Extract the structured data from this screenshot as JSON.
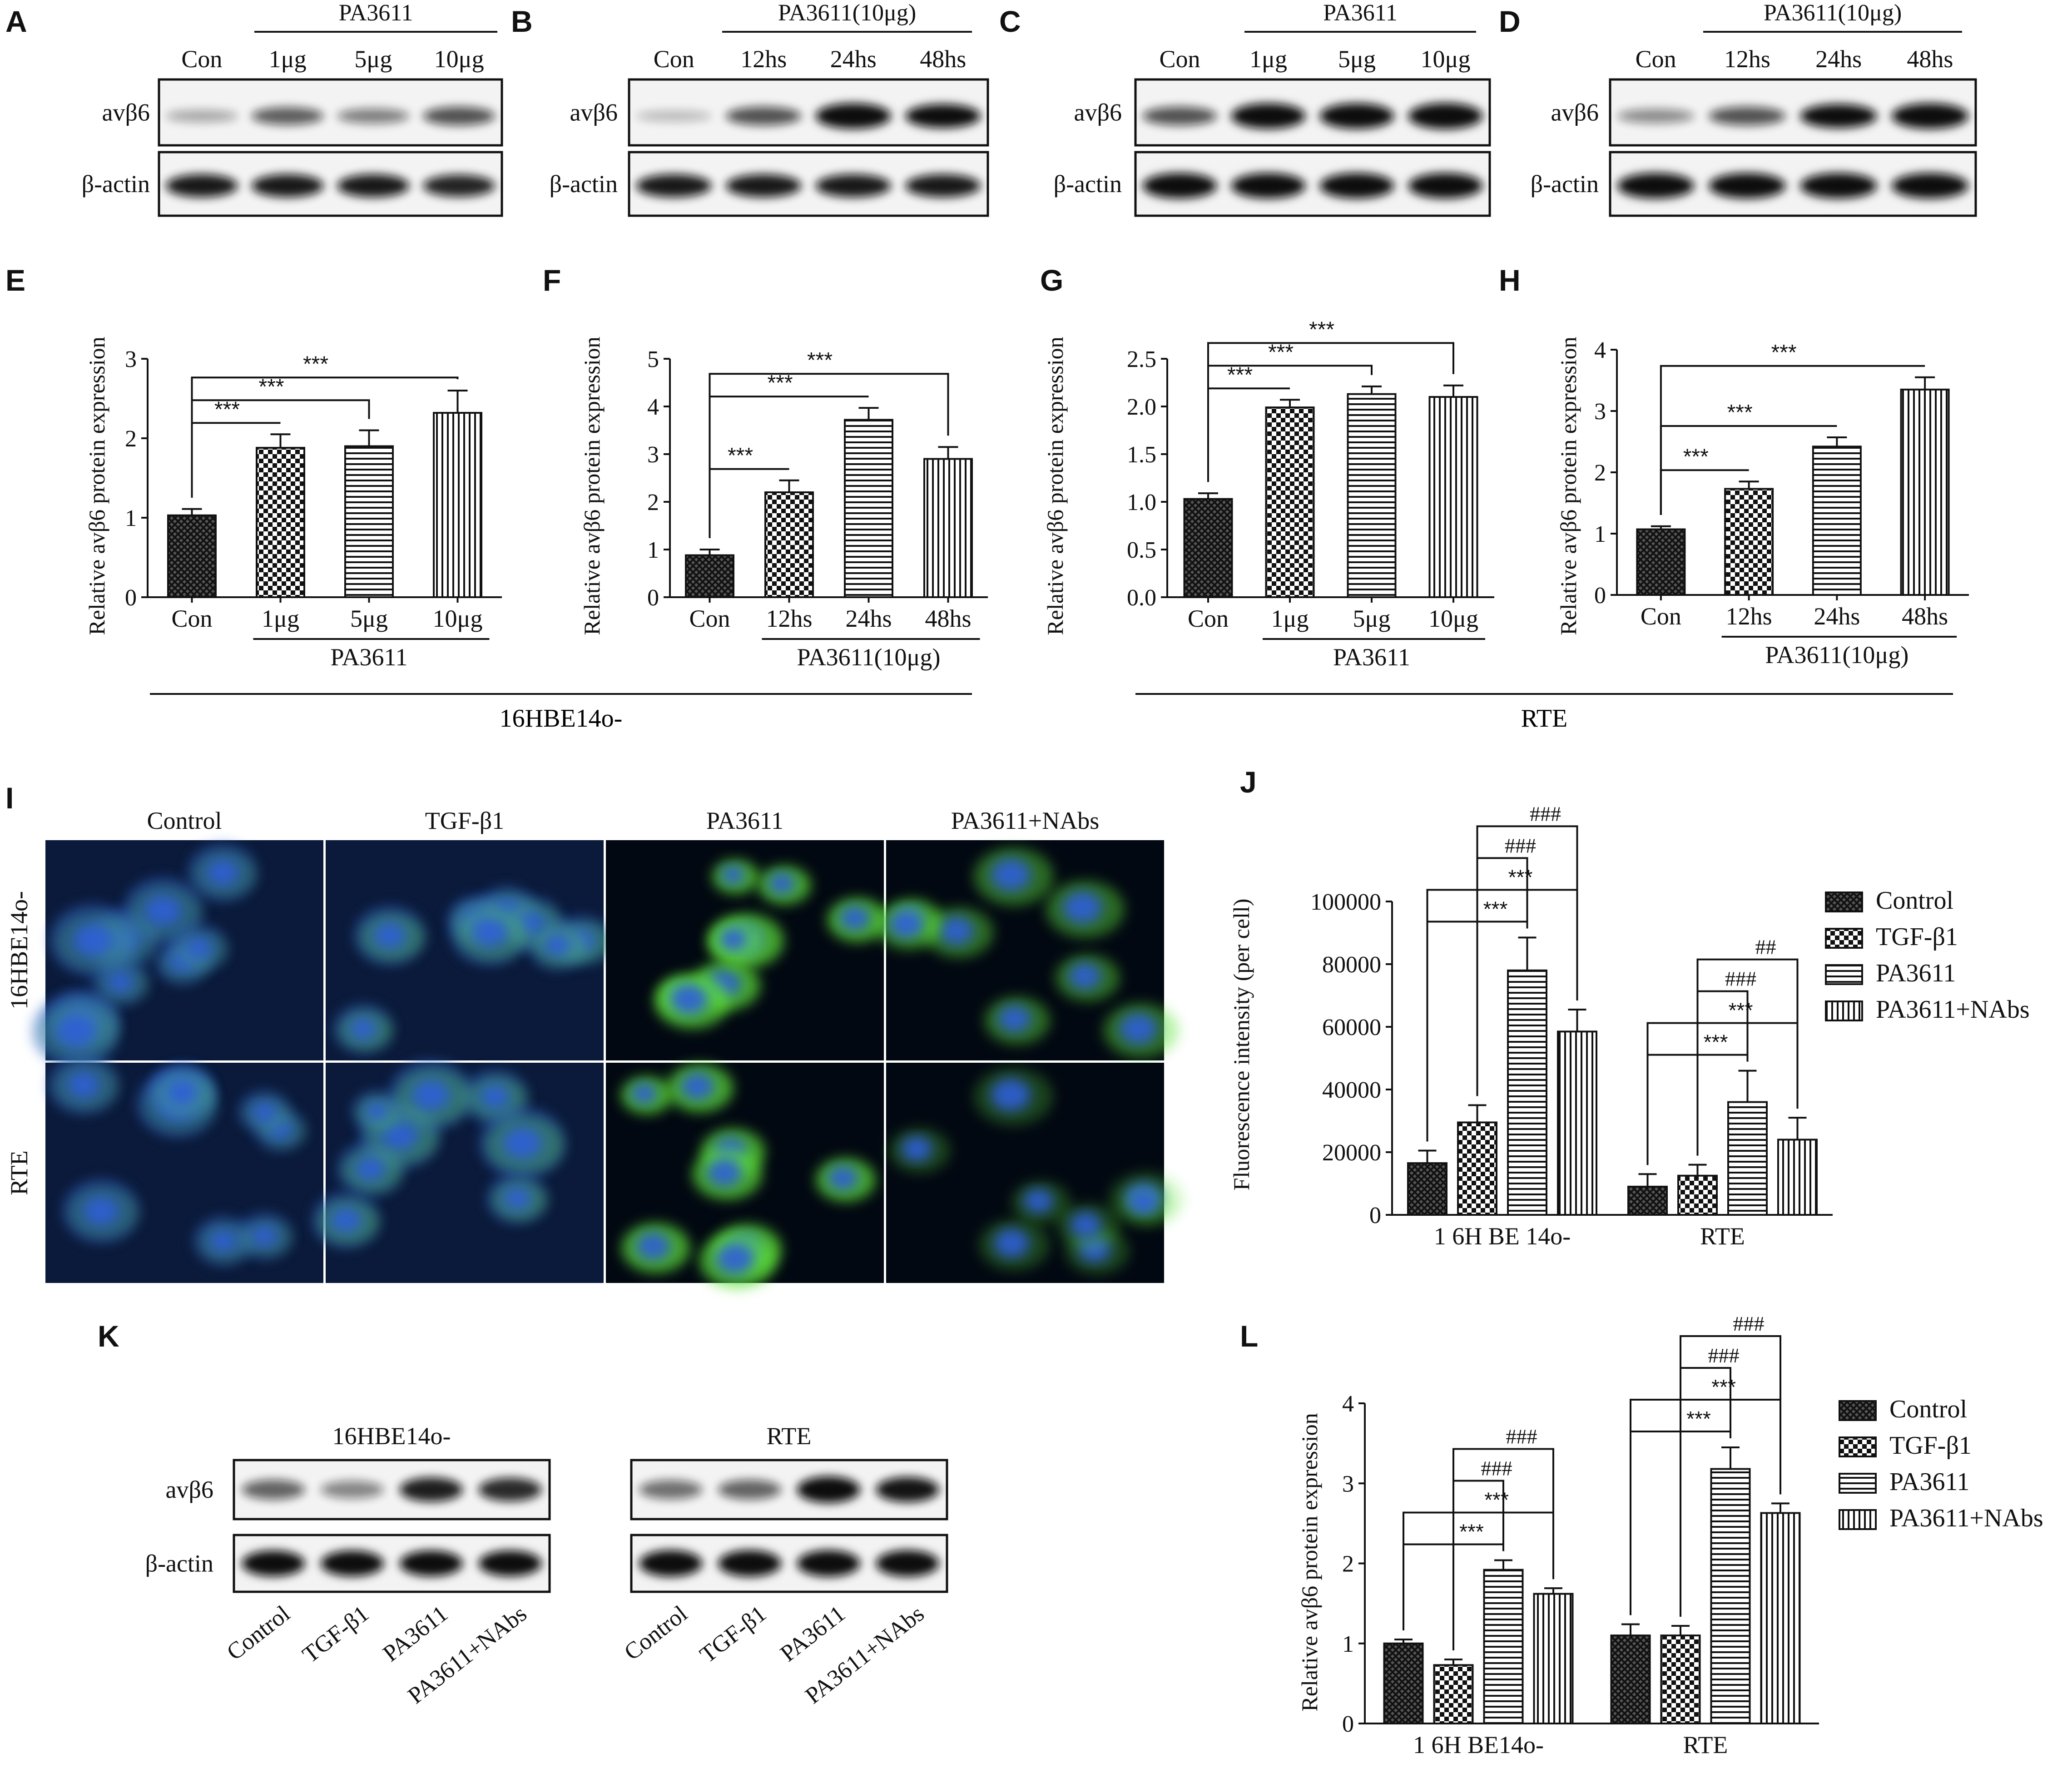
{
  "colors": {
    "ink": "#111111",
    "blot_bg": "#f2f2f2",
    "band": "#1a1a1a",
    "nucleus": "#2f62c8",
    "stain": "#5fe23a"
  },
  "panel_letters": [
    "A",
    "B",
    "C",
    "D",
    "E",
    "F",
    "G",
    "H",
    "I",
    "J",
    "K",
    "L"
  ],
  "blots": [
    {
      "letter": "A",
      "header": "PA3611",
      "lanes": [
        "Con",
        "1μg",
        "5μg",
        "10μg"
      ],
      "rows": [
        "avβ6",
        "β-actin"
      ],
      "intensity": [
        [
          0.18,
          0.5,
          0.35,
          0.55
        ],
        [
          0.8,
          0.8,
          0.8,
          0.75
        ]
      ]
    },
    {
      "letter": "B",
      "header": "PA3611(10μg)",
      "lanes": [
        "Con",
        "12hs",
        "24hs",
        "48hs"
      ],
      "rows": [
        "avβ6",
        "β-actin"
      ],
      "intensity": [
        [
          0.1,
          0.55,
          0.95,
          0.85
        ],
        [
          0.8,
          0.8,
          0.8,
          0.8
        ]
      ]
    },
    {
      "letter": "C",
      "header": "PA3611",
      "lanes": [
        "Con",
        "1μg",
        "5μg",
        "10μg"
      ],
      "rows": [
        "avβ6",
        "β-actin"
      ],
      "intensity": [
        [
          0.55,
          0.95,
          0.95,
          0.98
        ],
        [
          0.95,
          0.95,
          0.95,
          0.95
        ]
      ]
    },
    {
      "letter": "D",
      "header": "PA3611(10μg)",
      "lanes": [
        "Con",
        "12hs",
        "24hs",
        "48hs"
      ],
      "rows": [
        "avβ6",
        "β-actin"
      ],
      "intensity": [
        [
          0.3,
          0.55,
          0.85,
          0.95
        ],
        [
          0.95,
          0.95,
          0.95,
          0.95
        ]
      ]
    }
  ],
  "group_labels": [
    "16HBE14o-",
    "RTE"
  ],
  "micrograph": {
    "letter": "I",
    "columns": [
      "Control",
      "TGF-β1",
      "PA3611",
      "PA3611+NAbs"
    ],
    "rows": [
      "16HBE14o-",
      "RTE"
    ]
  },
  "blot_k": {
    "letter": "K",
    "blots": [
      {
        "title": "16HBE14o-",
        "rows": [
          "avβ6",
          "β-actin"
        ],
        "intensity": [
          [
            0.5,
            0.35,
            0.8,
            0.75
          ],
          [
            0.9,
            0.9,
            0.9,
            0.9
          ]
        ]
      },
      {
        "title": "RTE",
        "rows": [],
        "intensity": [
          [
            0.45,
            0.5,
            0.95,
            0.85
          ],
          [
            0.95,
            0.95,
            0.95,
            0.95
          ]
        ]
      }
    ],
    "lanes": [
      "Control",
      "TGF-β1",
      "PA3611",
      "PA3611+NAbs"
    ]
  },
  "chart_data": [
    {
      "letter": "E",
      "type": "bar",
      "ylabel": "Relative avβ6 protein expression",
      "categories": [
        "Con",
        "1μg",
        "5μg",
        "10μg"
      ],
      "values": [
        1.03,
        1.88,
        1.9,
        2.32
      ],
      "errors": [
        0.08,
        0.17,
        0.2,
        0.28
      ],
      "ylim": [
        0,
        3
      ],
      "yticks": [
        0,
        1,
        2,
        3
      ],
      "group_label": "PA3611",
      "sig": [
        "***",
        "***",
        "***"
      ],
      "patterns": [
        "pat-cross",
        "pat-check",
        "pat-hline",
        "pat-vline"
      ]
    },
    {
      "letter": "F",
      "type": "bar",
      "ylabel": "Relative avβ6 protein expression",
      "categories": [
        "Con",
        "12hs",
        "24hs",
        "48hs"
      ],
      "values": [
        0.88,
        2.2,
        3.72,
        2.9
      ],
      "errors": [
        0.12,
        0.25,
        0.25,
        0.25
      ],
      "ylim": [
        0,
        5
      ],
      "yticks": [
        0,
        1,
        2,
        3,
        4,
        5
      ],
      "group_label": "PA3611(10μg)",
      "sig": [
        "***",
        "***",
        "***"
      ],
      "patterns": [
        "pat-cross",
        "pat-check",
        "pat-hline",
        "pat-vline"
      ]
    },
    {
      "letter": "G",
      "type": "bar",
      "ylabel": "Relative avβ6 protein expression",
      "categories": [
        "Con",
        "1μg",
        "5μg",
        "10μg"
      ],
      "values": [
        1.03,
        1.99,
        2.13,
        2.1
      ],
      "errors": [
        0.06,
        0.08,
        0.08,
        0.12
      ],
      "ylim": [
        0,
        2.5
      ],
      "yticks": [
        "0.0",
        "0.5",
        "1.0",
        "1.5",
        "2.0",
        "2.5"
      ],
      "group_label": "PA3611",
      "sig": [
        "***",
        "***",
        "***"
      ],
      "patterns": [
        "pat-cross",
        "pat-check",
        "pat-hline",
        "pat-vline"
      ]
    },
    {
      "letter": "H",
      "type": "bar",
      "ylabel": "Relative avβ6 protein expression",
      "categories": [
        "Con",
        "12hs",
        "24hs",
        "48hs"
      ],
      "values": [
        1.07,
        1.73,
        2.42,
        3.35
      ],
      "errors": [
        0.05,
        0.12,
        0.15,
        0.2
      ],
      "ylim": [
        0,
        4
      ],
      "yticks": [
        0,
        1,
        2,
        3,
        4
      ],
      "group_label": "PA3611(10μg)",
      "sig": [
        "***",
        "***",
        "***"
      ],
      "patterns": [
        "pat-cross",
        "pat-check",
        "pat-hline",
        "pat-vline"
      ]
    },
    {
      "letter": "J",
      "type": "bar",
      "ylabel": "Fluorescence intensity (per cell)",
      "categories": [
        "1 6H BE 14o-",
        "RTE"
      ],
      "series": [
        {
          "name": "Control",
          "values": [
            16500,
            9000
          ],
          "errors": [
            4000,
            4000
          ]
        },
        {
          "name": "TGF-β1",
          "values": [
            29500,
            12500
          ],
          "errors": [
            5500,
            3500
          ]
        },
        {
          "name": "PA3611",
          "values": [
            78000,
            36000
          ],
          "errors": [
            10500,
            10000
          ]
        },
        {
          "name": "PA3611+NAbs",
          "values": [
            58500,
            24000
          ],
          "errors": [
            7000,
            7000
          ]
        }
      ],
      "ylim": [
        0,
        100000
      ],
      "yticks": [
        0,
        20000,
        40000,
        60000,
        80000,
        100000
      ],
      "legend": "right",
      "sig_g1": [
        "***",
        "***",
        "###",
        "###"
      ],
      "sig_g2": [
        "***",
        "***",
        "###",
        "##"
      ],
      "patterns": [
        "pat-cross",
        "pat-check",
        "pat-hline",
        "pat-vline"
      ]
    },
    {
      "letter": "L",
      "type": "bar",
      "ylabel": "Relative avβ6 protein expression",
      "categories": [
        "1 6H BE14o-",
        "RTE"
      ],
      "series": [
        {
          "name": "Control",
          "values": [
            1.0,
            1.1
          ],
          "errors": [
            0.05,
            0.14
          ]
        },
        {
          "name": "TGF-β1",
          "values": [
            0.73,
            1.1
          ],
          "errors": [
            0.07,
            0.12
          ]
        },
        {
          "name": "PA3611",
          "values": [
            1.92,
            3.18
          ],
          "errors": [
            0.12,
            0.27
          ]
        },
        {
          "name": "PA3611+NAbs",
          "values": [
            1.62,
            2.63
          ],
          "errors": [
            0.07,
            0.12
          ]
        }
      ],
      "ylim": [
        0,
        4
      ],
      "yticks": [
        0,
        1,
        2,
        3,
        4
      ],
      "legend": "right",
      "sig_g1": [
        "***",
        "***",
        "###",
        "###"
      ],
      "sig_g2": [
        "***",
        "***",
        "###",
        "###"
      ],
      "patterns": [
        "pat-cross",
        "pat-check",
        "pat-hline",
        "pat-vline"
      ]
    }
  ]
}
